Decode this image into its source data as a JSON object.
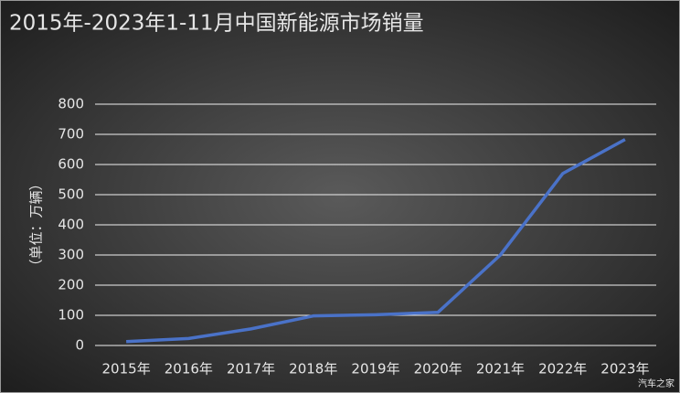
{
  "chart_data": {
    "type": "line",
    "title": "2015年-2023年1-11月中国新能源市场销量",
    "y_label": "（单位：万辆）",
    "watermark": "汽车之家",
    "categories": [
      "2015年",
      "2016年",
      "2017年",
      "2018年",
      "2019年",
      "2020年",
      "2021年",
      "2022年",
      "2023年"
    ],
    "series": [
      {
        "color": "#4a72c8",
        "values": [
          13,
          23,
          55,
          98,
          102,
          110,
          300,
          570,
          683
        ]
      }
    ],
    "ylim": [
      0,
      800
    ],
    "yticks": [
      0,
      100,
      200,
      300,
      400,
      500,
      600,
      700,
      800
    ],
    "grid": true
  }
}
